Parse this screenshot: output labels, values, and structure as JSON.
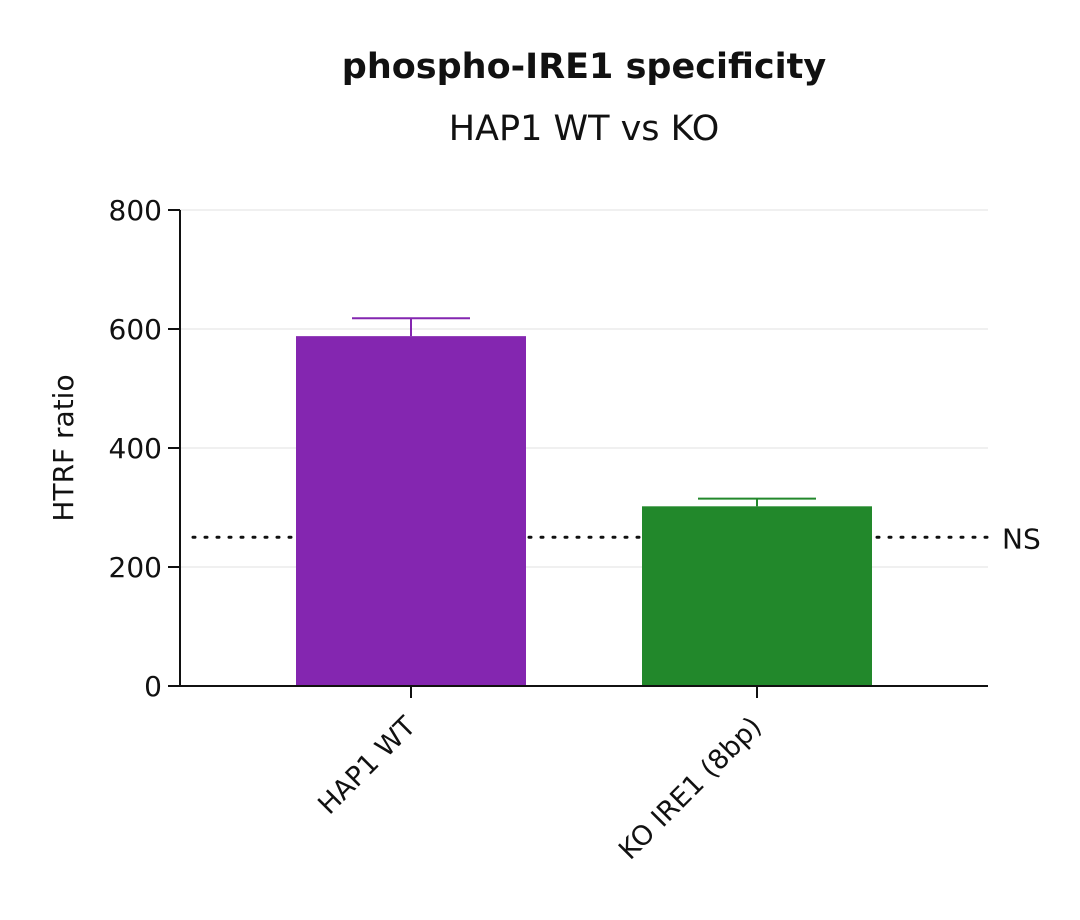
{
  "chart_data": {
    "type": "bar",
    "title": "phospho-IRE1 specificity",
    "subtitle": "HAP1 WT vs KO",
    "xlabel": "",
    "ylabel": "HTRF ratio",
    "ylim": [
      0,
      800
    ],
    "yticks": [
      0,
      200,
      400,
      600,
      800
    ],
    "grid": true,
    "categories": [
      "HAP1 WT",
      "KO IRE1 (8bp)"
    ],
    "values": [
      588,
      302
    ],
    "error": [
      30,
      13
    ],
    "colors": [
      "#8426B0",
      "#22882B"
    ],
    "reference_line": {
      "value": 250,
      "label": "NS",
      "style": "dotted"
    }
  }
}
